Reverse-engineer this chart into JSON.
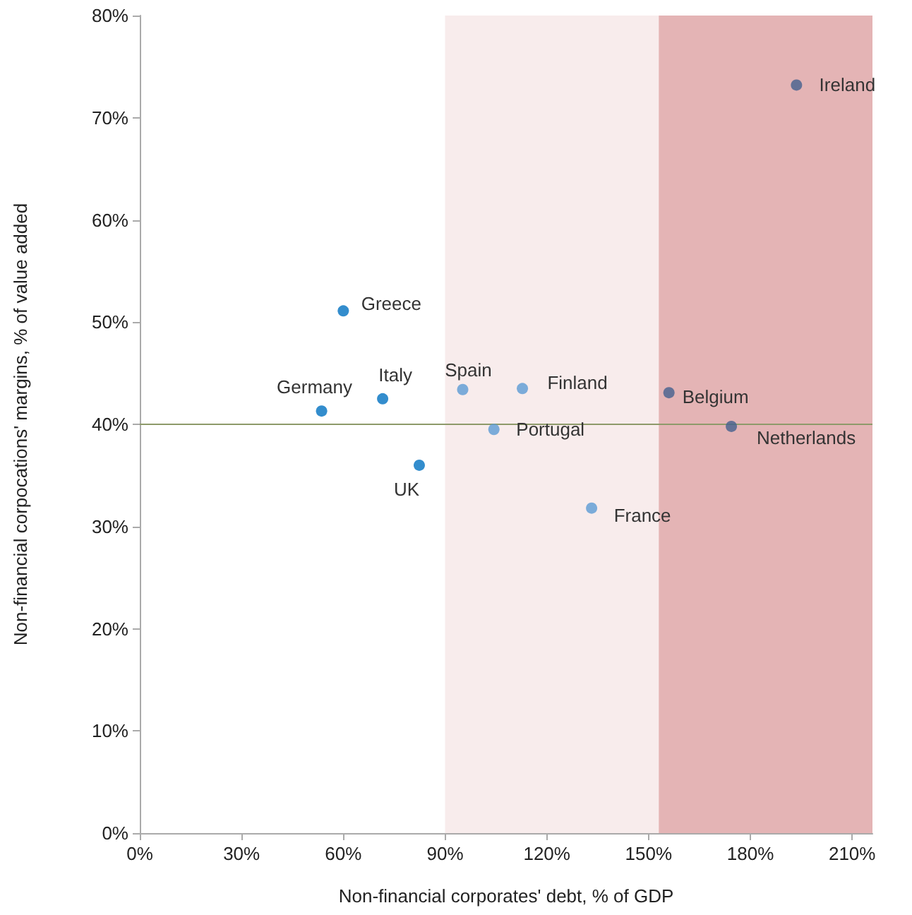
{
  "chart_data": {
    "type": "scatter",
    "xlabel": "Non-financial corporates' debt, % of GDP",
    "ylabel": "Non-financial corpocations' margins, % of value added",
    "xlim": [
      0,
      216
    ],
    "xticks": [
      {
        "value": 0,
        "label": "0%"
      },
      {
        "value": 30,
        "label": "30%"
      },
      {
        "value": 60,
        "label": "60%"
      },
      {
        "value": 90,
        "label": "90%"
      },
      {
        "value": 120,
        "label": "120%"
      },
      {
        "value": 150,
        "label": "150%"
      },
      {
        "value": 180,
        "label": "180%"
      },
      {
        "value": 210,
        "label": "210%"
      }
    ],
    "ylim": [
      0,
      80
    ],
    "yticks": [
      {
        "value": 0,
        "label": "0%"
      },
      {
        "value": 10,
        "label": "10%"
      },
      {
        "value": 20,
        "label": "20%"
      },
      {
        "value": 30,
        "label": "30%"
      },
      {
        "value": 40,
        "label": "40%"
      },
      {
        "value": 50,
        "label": "50%"
      },
      {
        "value": 60,
        "label": "60%"
      },
      {
        "value": 70,
        "label": "70%"
      },
      {
        "value": 80,
        "label": "80%"
      }
    ],
    "series": [
      {
        "color": "#0070c0",
        "x": [
          60,
          53.6,
          71.6,
          82.4
        ],
        "values": [
          51.1,
          41.3,
          42.5,
          36.0
        ]
      },
      {
        "color": "#5b9bd5",
        "x": [
          95.2,
          112.8,
          104.4,
          133.2
        ],
        "values": [
          43.4,
          43.5,
          39.5,
          31.8
        ]
      },
      {
        "color": "#44608f",
        "x": [
          193.6,
          156,
          174.4
        ],
        "values": [
          73.2,
          43.1,
          39.8
        ]
      }
    ],
    "bands": [
      {
        "axis": "x",
        "from": 90,
        "to": 153,
        "color": "#f8ecec"
      },
      {
        "axis": "x",
        "from": 153,
        "to": 216,
        "color": "#e4b4b5"
      }
    ],
    "ref_lines": [
      {
        "axis": "y",
        "value": 40,
        "color": "#8e9a6a"
      }
    ],
    "annotations": [
      {
        "text": "Greece",
        "x": 60,
        "y": 51.1
      },
      {
        "text": "Germany",
        "x": 53.6,
        "y": 41.3
      },
      {
        "text": "Italy",
        "x": 71.6,
        "y": 42.5
      },
      {
        "text": "UK",
        "x": 82.4,
        "y": 36.0
      },
      {
        "text": "Spain",
        "x": 95.2,
        "y": 43.4
      },
      {
        "text": "Finland",
        "x": 112.8,
        "y": 43.5
      },
      {
        "text": "Portugal",
        "x": 104.4,
        "y": 39.5
      },
      {
        "text": "France",
        "x": 133.2,
        "y": 31.8
      },
      {
        "text": "Belgium",
        "x": 156,
        "y": 43.1
      },
      {
        "text": "Netherlands",
        "x": 174.4,
        "y": 39.8
      },
      {
        "text": "Ireland",
        "x": 193.6,
        "y": 73.2
      }
    ],
    "grid": false,
    "marker": "circle"
  }
}
